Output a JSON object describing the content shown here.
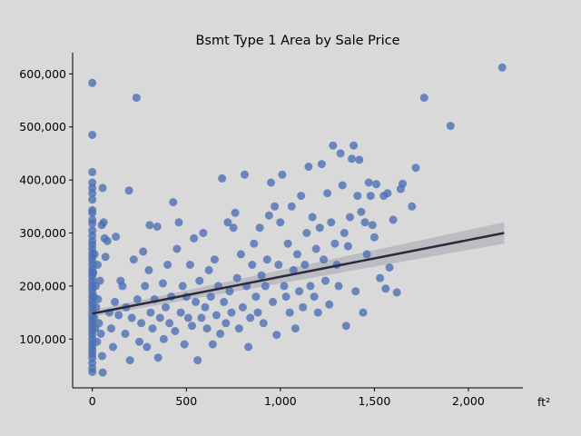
{
  "chart_data": {
    "type": "scatter",
    "title": "Bsmt Type 1 Area by Sale Price",
    "xlabel": "ft²",
    "ylabel": "",
    "xlim": [
      -105,
      2290
    ],
    "ylim": [
      8000,
      640000
    ],
    "x_ticks": [
      0,
      500,
      1000,
      1500,
      2000
    ],
    "x_tick_labels": [
      "0",
      "500",
      "1,000",
      "1,500",
      "2,000"
    ],
    "y_ticks": [
      100000,
      200000,
      300000,
      400000,
      500000,
      600000
    ],
    "y_tick_labels": [
      "100,000",
      "200,000",
      "300,000",
      "400,000",
      "500,000",
      "600,000"
    ],
    "grid": false,
    "colors": {
      "points": "#4c6fb4",
      "regression_line": "#2b2a3b",
      "confidence_band": "#a9a9b4"
    },
    "regression": {
      "x_start": 0,
      "y_start": 148000,
      "x_end": 2190,
      "y_end": 300000,
      "ci_halfwidth_start": 6000,
      "ci_halfwidth_end": 20000
    },
    "series": [
      {
        "values": [
          [
            0,
            583000
          ],
          [
            0,
            485000
          ],
          [
            0,
            415000
          ],
          [
            0,
            395000
          ],
          [
            0,
            385000
          ],
          [
            0,
            375000
          ],
          [
            0,
            363000
          ],
          [
            0,
            343000
          ],
          [
            0,
            338000
          ],
          [
            0,
            325000
          ],
          [
            0,
            318000
          ],
          [
            0,
            305000
          ],
          [
            0,
            295000
          ],
          [
            0,
            285000
          ],
          [
            0,
            278000
          ],
          [
            0,
            270000
          ],
          [
            0,
            262000
          ],
          [
            0,
            255000
          ],
          [
            0,
            248000
          ],
          [
            0,
            240000
          ],
          [
            0,
            232000
          ],
          [
            0,
            225000
          ],
          [
            0,
            218000
          ],
          [
            0,
            210000
          ],
          [
            0,
            202000
          ],
          [
            0,
            195000
          ],
          [
            0,
            188000
          ],
          [
            0,
            180000
          ],
          [
            0,
            172000
          ],
          [
            0,
            165000
          ],
          [
            0,
            158000
          ],
          [
            0,
            150000
          ],
          [
            0,
            143000
          ],
          [
            0,
            136000
          ],
          [
            0,
            129000
          ],
          [
            0,
            122000
          ],
          [
            0,
            115000
          ],
          [
            0,
            108000
          ],
          [
            0,
            100000
          ],
          [
            0,
            93000
          ],
          [
            0,
            86000
          ],
          [
            0,
            79000
          ],
          [
            0,
            72000
          ],
          [
            0,
            65000
          ],
          [
            0,
            55000
          ],
          [
            0,
            45000
          ],
          [
            0,
            38000
          ],
          [
            5,
            225000
          ],
          [
            8,
            180000
          ],
          [
            10,
            140000
          ],
          [
            12,
            260000
          ],
          [
            15,
            120000
          ],
          [
            18,
            200000
          ],
          [
            20,
            160000
          ],
          [
            25,
            95000
          ],
          [
            28,
            240000
          ],
          [
            30,
            175000
          ],
          [
            35,
            130000
          ],
          [
            40,
            210000
          ],
          [
            45,
            110000
          ],
          [
            50,
            315000
          ],
          [
            52,
            68000
          ],
          [
            55,
            385000
          ],
          [
            55,
            37000
          ],
          [
            60,
            320000
          ],
          [
            65,
            290000
          ],
          [
            70,
            255000
          ],
          [
            80,
            285000
          ],
          [
            90,
            150000
          ],
          [
            100,
            120000
          ],
          [
            110,
            85000
          ],
          [
            120,
            170000
          ],
          [
            125,
            293000
          ],
          [
            140,
            145000
          ],
          [
            150,
            210000
          ],
          [
            160,
            200000
          ],
          [
            175,
            110000
          ],
          [
            180,
            160000
          ],
          [
            195,
            380000
          ],
          [
            200,
            60000
          ],
          [
            210,
            140000
          ],
          [
            220,
            250000
          ],
          [
            235,
            555000
          ],
          [
            240,
            175000
          ],
          [
            250,
            95000
          ],
          [
            260,
            130000
          ],
          [
            270,
            265000
          ],
          [
            280,
            200000
          ],
          [
            290,
            85000
          ],
          [
            300,
            230000
          ],
          [
            305,
            315000
          ],
          [
            310,
            150000
          ],
          [
            320,
            120000
          ],
          [
            330,
            175000
          ],
          [
            345,
            312000
          ],
          [
            350,
            65000
          ],
          [
            360,
            140000
          ],
          [
            375,
            205000
          ],
          [
            380,
            100000
          ],
          [
            390,
            160000
          ],
          [
            400,
            240000
          ],
          [
            410,
            130000
          ],
          [
            420,
            180000
          ],
          [
            430,
            358000
          ],
          [
            440,
            115000
          ],
          [
            450,
            270000
          ],
          [
            460,
            320000
          ],
          [
            470,
            150000
          ],
          [
            480,
            200000
          ],
          [
            490,
            90000
          ],
          [
            500,
            180000
          ],
          [
            510,
            140000
          ],
          [
            520,
            240000
          ],
          [
            530,
            125000
          ],
          [
            540,
            290000
          ],
          [
            550,
            170000
          ],
          [
            560,
            60000
          ],
          [
            570,
            210000
          ],
          [
            580,
            140000
          ],
          [
            590,
            300000
          ],
          [
            600,
            160000
          ],
          [
            610,
            120000
          ],
          [
            620,
            230000
          ],
          [
            630,
            180000
          ],
          [
            640,
            90000
          ],
          [
            650,
            250000
          ],
          [
            660,
            145000
          ],
          [
            670,
            200000
          ],
          [
            680,
            110000
          ],
          [
            690,
            403000
          ],
          [
            700,
            170000
          ],
          [
            710,
            130000
          ],
          [
            720,
            320000
          ],
          [
            730,
            190000
          ],
          [
            740,
            150000
          ],
          [
            750,
            310000
          ],
          [
            760,
            338000
          ],
          [
            770,
            215000
          ],
          [
            780,
            120000
          ],
          [
            790,
            260000
          ],
          [
            800,
            160000
          ],
          [
            810,
            410000
          ],
          [
            820,
            200000
          ],
          [
            830,
            85000
          ],
          [
            840,
            140000
          ],
          [
            850,
            240000
          ],
          [
            860,
            280000
          ],
          [
            870,
            180000
          ],
          [
            880,
            150000
          ],
          [
            890,
            310000
          ],
          [
            900,
            220000
          ],
          [
            910,
            130000
          ],
          [
            920,
            200000
          ],
          [
            930,
            250000
          ],
          [
            940,
            333000
          ],
          [
            950,
            395000
          ],
          [
            960,
            170000
          ],
          [
            970,
            350000
          ],
          [
            980,
            108000
          ],
          [
            990,
            240000
          ],
          [
            1000,
            320000
          ],
          [
            1010,
            410000
          ],
          [
            1020,
            200000
          ],
          [
            1030,
            180000
          ],
          [
            1040,
            280000
          ],
          [
            1050,
            150000
          ],
          [
            1060,
            350000
          ],
          [
            1070,
            230000
          ],
          [
            1080,
            120000
          ],
          [
            1090,
            260000
          ],
          [
            1100,
            190000
          ],
          [
            1110,
            370000
          ],
          [
            1120,
            160000
          ],
          [
            1130,
            240000
          ],
          [
            1140,
            300000
          ],
          [
            1150,
            425000
          ],
          [
            1160,
            200000
          ],
          [
            1170,
            330000
          ],
          [
            1180,
            180000
          ],
          [
            1190,
            270000
          ],
          [
            1200,
            150000
          ],
          [
            1210,
            310000
          ],
          [
            1220,
            430000
          ],
          [
            1230,
            250000
          ],
          [
            1240,
            210000
          ],
          [
            1250,
            375000
          ],
          [
            1260,
            165000
          ],
          [
            1270,
            320000
          ],
          [
            1280,
            465000
          ],
          [
            1290,
            280000
          ],
          [
            1300,
            240000
          ],
          [
            1310,
            200000
          ],
          [
            1320,
            450000
          ],
          [
            1330,
            390000
          ],
          [
            1340,
            300000
          ],
          [
            1350,
            125000
          ],
          [
            1360,
            275000
          ],
          [
            1370,
            330000
          ],
          [
            1380,
            440000
          ],
          [
            1390,
            465000
          ],
          [
            1400,
            190000
          ],
          [
            1410,
            370000
          ],
          [
            1420,
            438000
          ],
          [
            1430,
            340000
          ],
          [
            1440,
            150000
          ],
          [
            1450,
            320000
          ],
          [
            1460,
            260000
          ],
          [
            1470,
            395000
          ],
          [
            1480,
            370000
          ],
          [
            1490,
            315000
          ],
          [
            1500,
            292000
          ],
          [
            1510,
            392000
          ],
          [
            1530,
            215000
          ],
          [
            1550,
            370000
          ],
          [
            1560,
            195000
          ],
          [
            1570,
            375000
          ],
          [
            1580,
            235000
          ],
          [
            1600,
            325000
          ],
          [
            1620,
            188000
          ],
          [
            1640,
            383000
          ],
          [
            1650,
            393000
          ],
          [
            1700,
            350000
          ],
          [
            1720,
            423000
          ],
          [
            1765,
            555000
          ],
          [
            1905,
            502000
          ],
          [
            2180,
            612000
          ]
        ]
      }
    ]
  }
}
